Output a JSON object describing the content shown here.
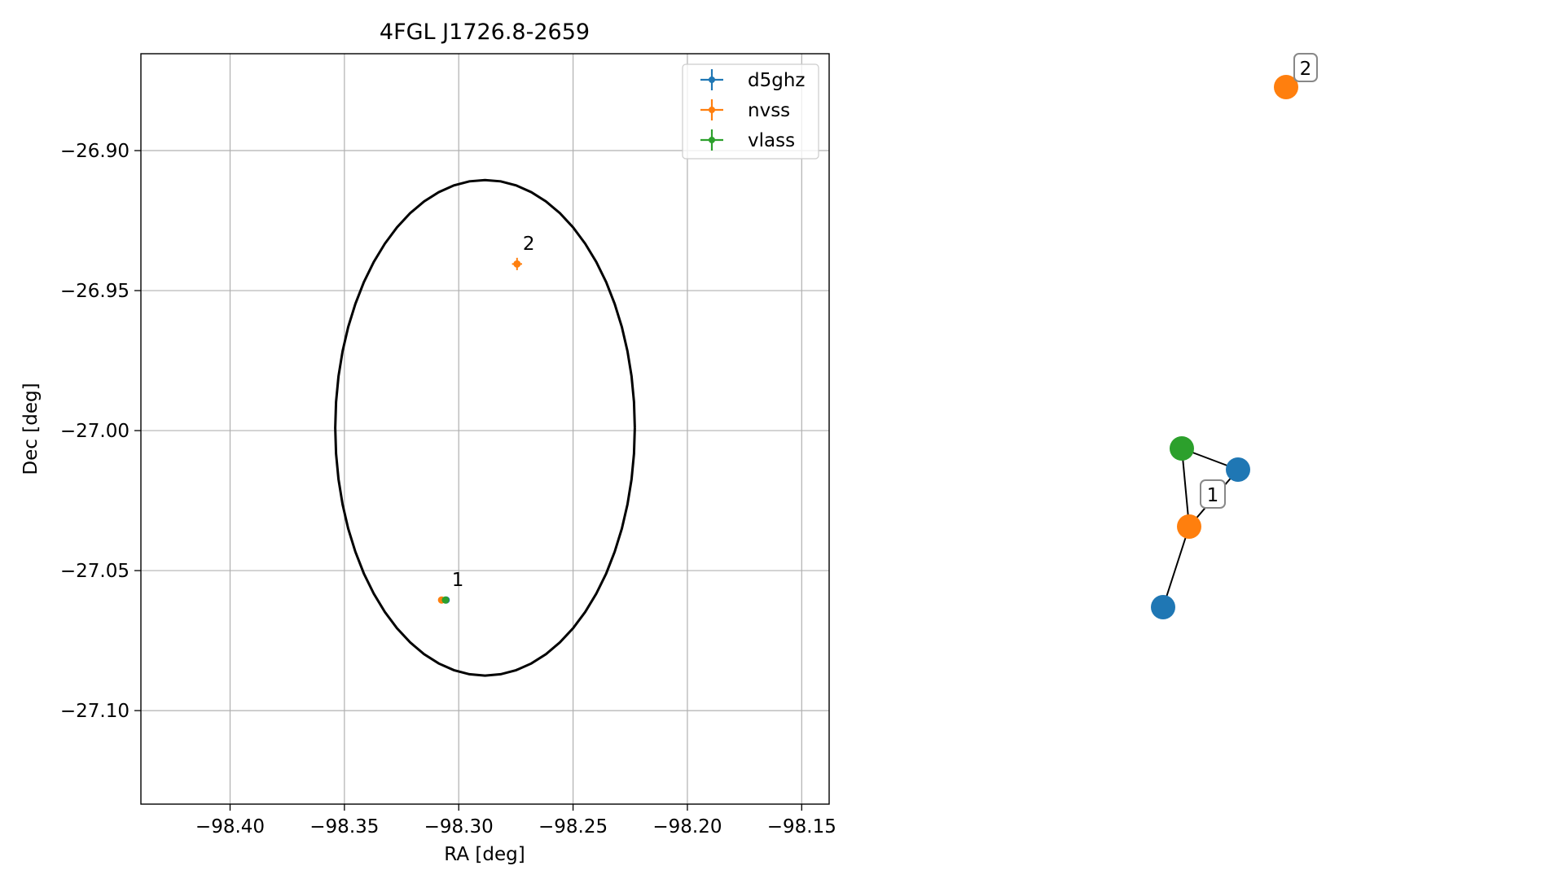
{
  "chart_data": [
    {
      "type": "scatter",
      "title": "4FGL J1726.8-2659",
      "xlabel": "RA [deg]",
      "ylabel": "Dec [deg]",
      "xlim": [
        -98.439,
        -98.138
      ],
      "ylim": [
        -27.1334,
        -26.8654
      ],
      "xticks": [
        -98.4,
        -98.35,
        -98.3,
        -98.25,
        -98.2,
        -98.15
      ],
      "xtick_labels": [
        "−98.40",
        "−98.35",
        "−98.30",
        "−98.25",
        "−98.20",
        "−98.15"
      ],
      "yticks": [
        -26.9,
        -26.95,
        -27.0,
        -27.05,
        -27.1
      ],
      "ytick_labels": [
        "−26.90",
        "−26.95",
        "−27.00",
        "−27.05",
        "−27.10"
      ],
      "grid": true,
      "legend_position": "top-right",
      "series": [
        {
          "name": "d5ghz",
          "color": "#1f77b4",
          "points": [
            {
              "x": -98.3055,
              "y": -27.0605,
              "xerr": 0.0005,
              "yerr": 0.0005
            }
          ]
        },
        {
          "name": "nvss",
          "color": "#ff7f0e",
          "points": [
            {
              "x": -98.3075,
              "y": -27.0605,
              "xerr": 0.0012,
              "yerr": 0.0012
            },
            {
              "x": -98.2745,
              "y": -26.9405,
              "xerr": 0.0022,
              "yerr": 0.0022
            }
          ]
        },
        {
          "name": "vlass",
          "color": "#2ca02c",
          "points": [
            {
              "x": -98.3058,
              "y": -27.0605,
              "xerr": 0.0005,
              "yerr": 0.0005
            }
          ]
        }
      ],
      "annotations": [
        {
          "text": "1",
          "x": -98.303,
          "y": -27.0555
        },
        {
          "text": "2",
          "x": -98.272,
          "y": -26.9355
        }
      ],
      "ellipse": {
        "center_x": -98.2885,
        "center_y": -26.999,
        "semi_x": 0.0655,
        "semi_y": 0.0885,
        "color": "#000000"
      }
    },
    {
      "type": "network",
      "nodes": [
        {
          "id": "d5ghz-1",
          "color": "#1f77b4"
        },
        {
          "id": "d5ghz-2",
          "color": "#1f77b4"
        },
        {
          "id": "nvss-1",
          "color": "#ff7f0e"
        },
        {
          "id": "nvss-2",
          "color": "#ff7f0e"
        },
        {
          "id": "vlass-1",
          "color": "#2ca02c"
        }
      ],
      "edges": [
        [
          "vlass-1",
          "d5ghz-1"
        ],
        [
          "vlass-1",
          "nvss-1"
        ],
        [
          "d5ghz-1",
          "nvss-1"
        ],
        [
          "nvss-1",
          "d5ghz-2"
        ]
      ],
      "labels": [
        {
          "text": "1"
        },
        {
          "text": "2"
        }
      ]
    }
  ]
}
